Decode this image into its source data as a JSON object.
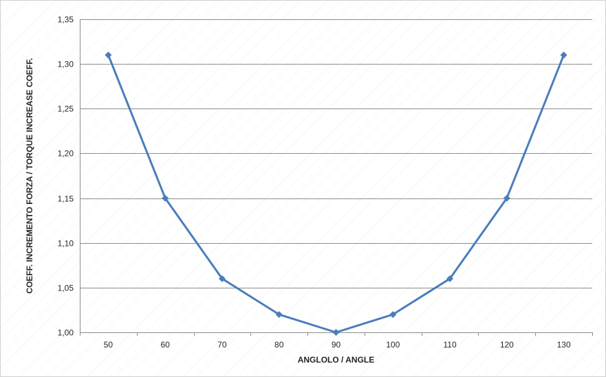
{
  "chart_data": {
    "type": "line",
    "title": "",
    "xlabel": "ANGLOLO / ANGLE",
    "ylabel": "COEFF. INCREMENTO FORZA / TORQUE INCREASE COEFF.",
    "categories": [
      "50",
      "60",
      "70",
      "80",
      "90",
      "100",
      "110",
      "120",
      "130"
    ],
    "series": [
      {
        "values": [
          1.31,
          1.15,
          1.06,
          1.02,
          1.0,
          1.02,
          1.06,
          1.15,
          1.31
        ]
      }
    ],
    "ylim": [
      1.0,
      1.35
    ],
    "yticks": [
      1.0,
      1.05,
      1.1,
      1.15,
      1.2,
      1.25,
      1.3,
      1.35
    ],
    "ytick_labels": [
      "1,00",
      "1,05",
      "1,10",
      "1,15",
      "1,20",
      "1,25",
      "1,30",
      "1,35"
    ],
    "grid": "horizontal",
    "legend": "none",
    "marker": "diamond",
    "colors": {
      "series": "#4a7ebb",
      "grid": "#8c8c8c",
      "axis": "#8c8c8c",
      "text": "#262626"
    }
  }
}
